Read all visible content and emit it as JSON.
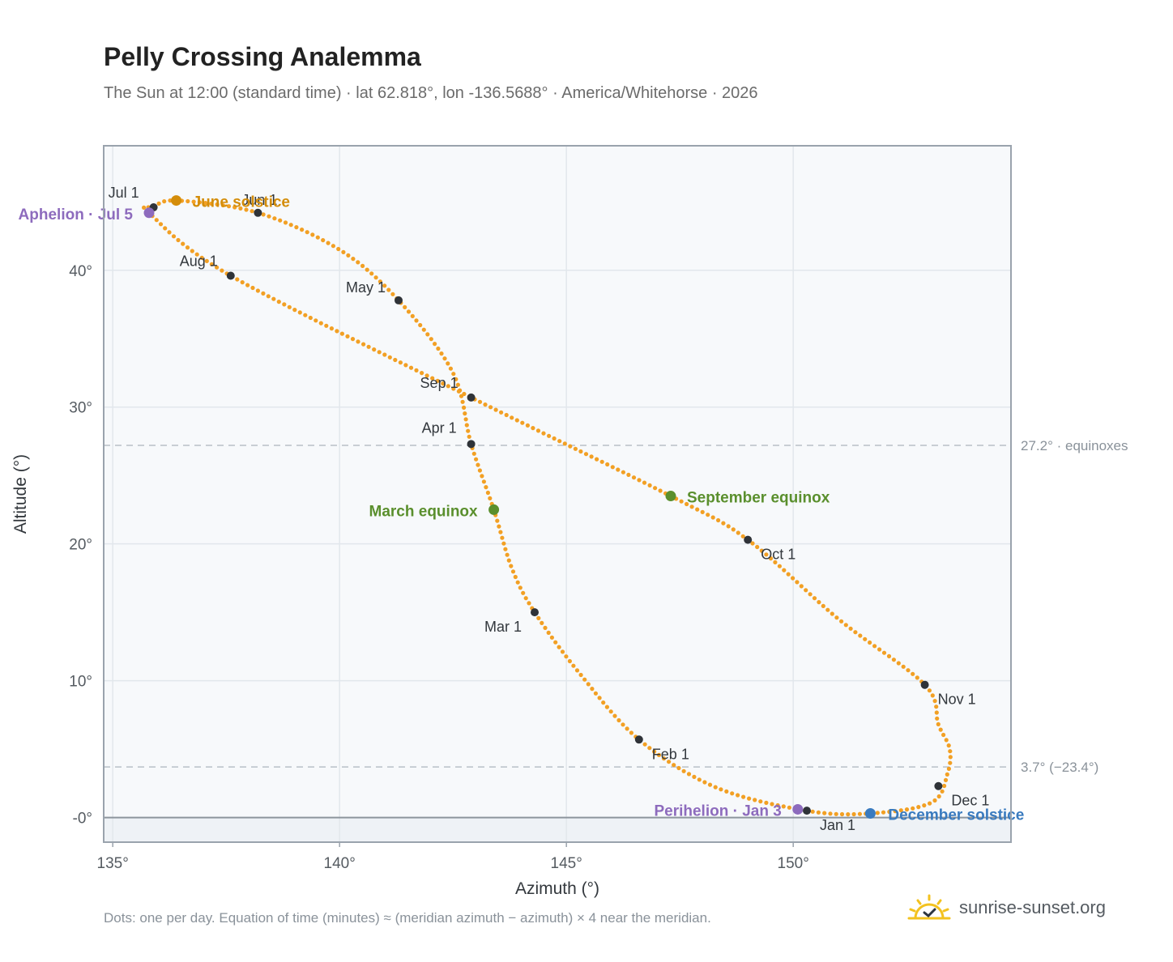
{
  "title": "Pelly Crossing Analemma",
  "subtitle": "The Sun at 12:00 (standard time) · lat 62.818°, lon -136.5688° · America/Whitehorse · 2026",
  "footer_note": "Dots: one per day. Equation of time (minutes) ≈ (meridian azimuth − azimuth) × 4 near the meridian.",
  "brand": {
    "name": "sunrise-sunset.org",
    "icon": "sun-logo-icon"
  },
  "colors": {
    "curve": "#f2a024",
    "month_marker": "#2f3338",
    "solstice_june": "#d48d0a",
    "solstice_december": "#3a7bbf",
    "equinox": "#5a8f2d",
    "apsis": "#8d6bbd",
    "reference_line": "#b9c0c8",
    "plot_bg": "#f7f9fb",
    "below_horizon": "#eef2f6",
    "grid": "#e2e7ec"
  },
  "chart_data": {
    "type": "scatter",
    "xlabel": "Azimuth (°)",
    "ylabel": "Altitude (°)",
    "xlim": [
      134.8,
      154.8
    ],
    "ylim": [
      -1.8,
      49.1
    ],
    "x_ticks": [
      135,
      140,
      145,
      150
    ],
    "x_tick_labels": [
      "135°",
      "140°",
      "145°",
      "150°"
    ],
    "y_ticks": [
      0,
      10,
      20,
      30,
      40
    ],
    "y_tick_labels": [
      "-0°",
      "10°",
      "20°",
      "30°",
      "40°"
    ],
    "grid": true,
    "horizon_altitude": 0,
    "reference_lines": [
      {
        "y": 27.2,
        "label": "27.2° · equinoxes"
      },
      {
        "y": 3.7,
        "label": "3.7° (−23.4°)"
      }
    ],
    "month_markers": [
      {
        "label": "Jan 1",
        "x": 150.3,
        "y": 0.5
      },
      {
        "label": "Feb 1",
        "x": 146.6,
        "y": 5.7
      },
      {
        "label": "Mar 1",
        "x": 144.3,
        "y": 15.0
      },
      {
        "label": "Apr 1",
        "x": 142.9,
        "y": 27.3
      },
      {
        "label": "May 1",
        "x": 141.3,
        "y": 37.8
      },
      {
        "label": "Jun 1",
        "x": 138.2,
        "y": 44.2
      },
      {
        "label": "Jul 1",
        "x": 135.9,
        "y": 44.6
      },
      {
        "label": "Aug 1",
        "x": 137.6,
        "y": 39.6
      },
      {
        "label": "Sep 1",
        "x": 142.9,
        "y": 30.7
      },
      {
        "label": "Oct 1",
        "x": 149.0,
        "y": 20.3
      },
      {
        "label": "Nov 1",
        "x": 152.9,
        "y": 9.7
      },
      {
        "label": "Dec 1",
        "x": 153.2,
        "y": 2.3
      }
    ],
    "events": [
      {
        "label": "June solstice",
        "x": 136.4,
        "y": 45.1,
        "kind": "solstice_june"
      },
      {
        "label": "December solstice",
        "x": 151.7,
        "y": 0.3,
        "kind": "solstice_december"
      },
      {
        "label": "March equinox",
        "x": 143.4,
        "y": 22.5,
        "kind": "equinox"
      },
      {
        "label": "September equinox",
        "x": 147.3,
        "y": 23.5,
        "kind": "equinox"
      },
      {
        "label": "Aphelion · Jul 5",
        "x": 135.8,
        "y": 44.2,
        "kind": "apsis"
      },
      {
        "label": "Perihelion · Jan 3",
        "x": 150.1,
        "y": 0.6,
        "kind": "apsis"
      }
    ]
  }
}
